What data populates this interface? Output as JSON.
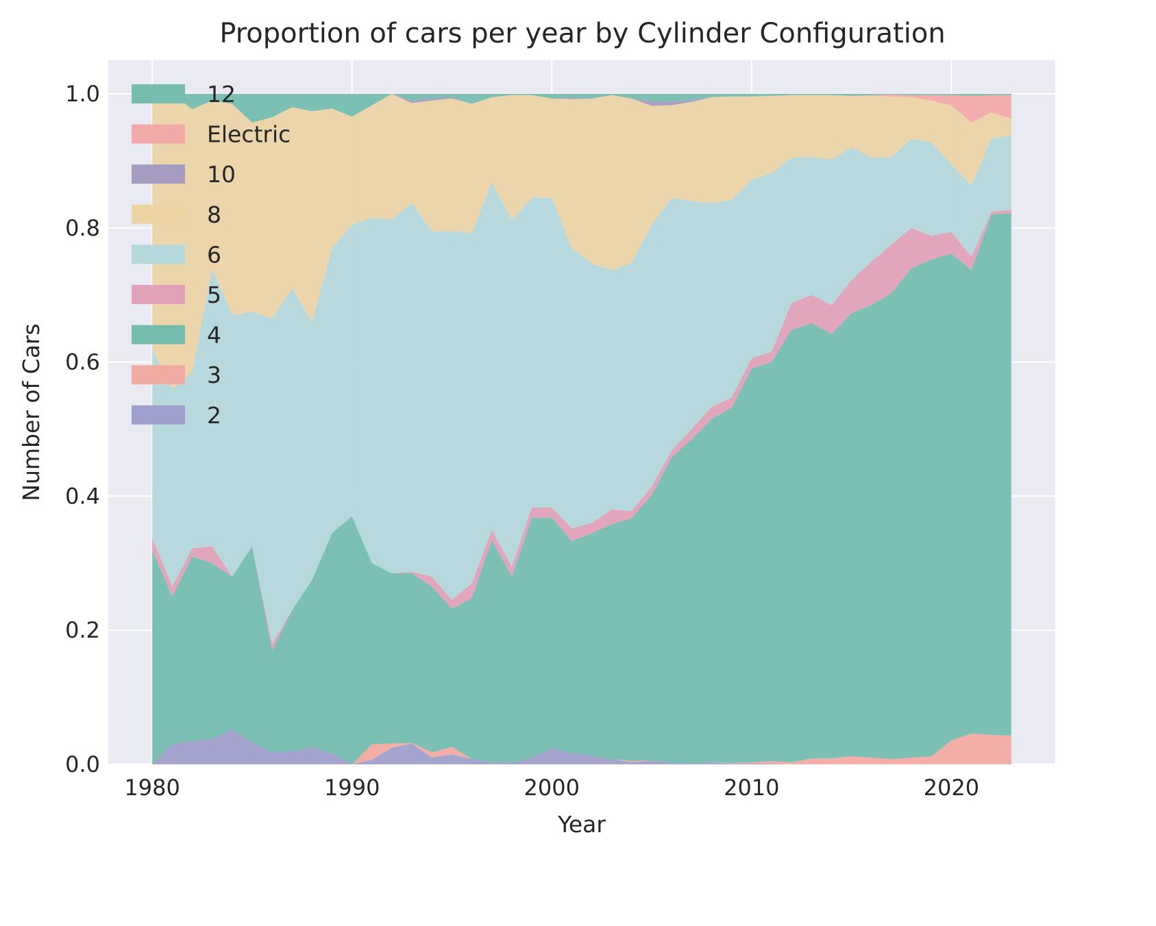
{
  "chart_data": {
    "type": "area",
    "stacked": true,
    "title": "Proportion of cars per year by Cylinder Configuration",
    "xlabel": "Year",
    "ylabel": "Number of Cars",
    "xlim": [
      1977.8,
      2025.2
    ],
    "ylim": [
      0,
      1.05
    ],
    "x_ticks": [
      1980,
      1990,
      2000,
      2010,
      2020
    ],
    "y_ticks": [
      "0.0",
      "0.2",
      "0.4",
      "0.6",
      "0.8",
      "1.0"
    ],
    "grid": true,
    "legend_position": "top-left",
    "x": [
      1980,
      1981,
      1982,
      1983,
      1984,
      1985,
      1986,
      1987,
      1988,
      1989,
      1990,
      1991,
      1992,
      1993,
      1994,
      1995,
      1996,
      1997,
      1998,
      1999,
      2000,
      2001,
      2002,
      2003,
      2004,
      2005,
      2006,
      2007,
      2008,
      2009,
      2010,
      2011,
      2012,
      2013,
      2014,
      2015,
      2016,
      2017,
      2018,
      2019,
      2020,
      2021,
      2022,
      2023
    ],
    "series": [
      {
        "name": "2",
        "color": "#a0a0cc",
        "values": [
          0,
          0.03,
          0.035,
          0.038,
          0.052,
          0.032,
          0.018,
          0.02,
          0.025,
          0.016,
          0,
          0.007,
          0.025,
          0.031,
          0.01,
          0.015,
          0.008,
          0.003,
          0.002,
          0.01,
          0.024,
          0.016,
          0.013,
          0.008,
          0.003,
          0.006,
          0.002,
          0.001,
          0.003,
          0.001,
          0.001,
          0.001,
          0,
          0,
          0,
          0,
          0,
          0,
          0,
          0,
          0,
          0,
          0,
          0
        ]
      },
      {
        "name": "3",
        "color": "#f2aba2",
        "values": [
          0,
          0,
          0,
          0,
          0,
          0,
          0,
          0,
          0,
          0,
          0,
          0.023,
          0.006,
          0.001,
          0.008,
          0.011,
          0,
          0,
          0,
          0,
          0,
          0,
          0,
          0,
          0.002,
          0,
          0,
          0,
          0,
          0.001,
          0.002,
          0.004,
          0.003,
          0.009,
          0.009,
          0.012,
          0.01,
          0.008,
          0.01,
          0.012,
          0.036,
          0.046,
          0.044,
          0.043
        ]
      },
      {
        "name": "4",
        "color": "#76bdb0",
        "values": [
          0.32,
          0.22,
          0.275,
          0.262,
          0.228,
          0.293,
          0.152,
          0.21,
          0.25,
          0.329,
          0.37,
          0.27,
          0.254,
          0.253,
          0.247,
          0.206,
          0.24,
          0.332,
          0.278,
          0.358,
          0.344,
          0.317,
          0.332,
          0.35,
          0.362,
          0.396,
          0.456,
          0.484,
          0.512,
          0.53,
          0.587,
          0.595,
          0.645,
          0.649,
          0.633,
          0.661,
          0.675,
          0.695,
          0.73,
          0.741,
          0.726,
          0.691,
          0.776,
          0.779
        ]
      },
      {
        "name": "5",
        "color": "#e0a2b8",
        "values": [
          0.018,
          0.015,
          0.012,
          0.025,
          0,
          0,
          0.01,
          0,
          0,
          0,
          0,
          0,
          0,
          0.002,
          0.015,
          0.013,
          0.022,
          0.015,
          0.015,
          0.015,
          0.015,
          0.019,
          0.015,
          0.022,
          0.011,
          0.013,
          0.01,
          0.015,
          0.018,
          0.015,
          0.016,
          0.015,
          0.04,
          0.042,
          0.043,
          0.049,
          0.065,
          0.072,
          0.06,
          0.035,
          0.032,
          0.02,
          0.004,
          0.005
        ]
      },
      {
        "name": "6",
        "color": "#b4d8db",
        "values": [
          0.282,
          0.295,
          0.263,
          0.415,
          0.39,
          0.35,
          0.485,
          0.48,
          0.385,
          0.425,
          0.435,
          0.515,
          0.528,
          0.55,
          0.515,
          0.55,
          0.523,
          0.518,
          0.517,
          0.462,
          0.462,
          0.418,
          0.387,
          0.357,
          0.37,
          0.39,
          0.377,
          0.34,
          0.304,
          0.295,
          0.266,
          0.267,
          0.217,
          0.206,
          0.217,
          0.198,
          0.155,
          0.131,
          0.133,
          0.139,
          0.101,
          0.106,
          0.109,
          0.111
        ]
      },
      {
        "name": "8",
        "color": "#ecd4a5",
        "values": [
          0.38,
          0.44,
          0.392,
          0.25,
          0.315,
          0.282,
          0.3,
          0.27,
          0.314,
          0.208,
          0.161,
          0.168,
          0.187,
          0.149,
          0.195,
          0.198,
          0.192,
          0.127,
          0.186,
          0.153,
          0.148,
          0.222,
          0.246,
          0.261,
          0.245,
          0.177,
          0.138,
          0.148,
          0.158,
          0.154,
          0.124,
          0.115,
          0.093,
          0.092,
          0.096,
          0.077,
          0.092,
          0.09,
          0.062,
          0.063,
          0.088,
          0.094,
          0.039,
          0.025
        ]
      },
      {
        "name": "10",
        "color": "#a69cc0",
        "values": [
          0,
          0,
          0,
          0,
          0,
          0,
          0,
          0,
          0,
          0,
          0,
          0,
          0,
          0.004,
          0.003,
          0.002,
          0,
          0,
          0,
          0,
          0,
          0.002,
          0,
          0,
          0,
          0.007,
          0.005,
          0.003,
          0,
          0,
          0,
          0,
          0,
          0,
          0,
          0,
          0,
          0,
          0,
          0,
          0,
          0,
          0,
          0
        ]
      },
      {
        "name": "Electric",
        "color": "#f2aaa8",
        "values": [
          0,
          0,
          0,
          0,
          0,
          0,
          0,
          0,
          0,
          0,
          0,
          0,
          0,
          0,
          0,
          0,
          0,
          0,
          0,
          0,
          0,
          0,
          0,
          0,
          0,
          0,
          0,
          0,
          0,
          0,
          0,
          0,
          0,
          0,
          0,
          0,
          0.001,
          0.003,
          0.003,
          0.008,
          0.015,
          0.04,
          0.026,
          0.035
        ]
      },
      {
        "name": "12",
        "color": "#76bdb0",
        "values": [
          0,
          0,
          0.023,
          0.01,
          0.015,
          0.043,
          0.035,
          0.02,
          0.026,
          0.022,
          0.034,
          0.017,
          0,
          0.01,
          0.007,
          0.005,
          0.015,
          0.005,
          0.002,
          0.002,
          0.007,
          0.006,
          0.007,
          0.002,
          0.007,
          0.011,
          0.012,
          0.009,
          0.005,
          0.004,
          0.004,
          0.003,
          0.002,
          0.002,
          0.002,
          0.003,
          0.002,
          0.001,
          0.002,
          0.002,
          0.002,
          0.003,
          0.002,
          0.002
        ]
      }
    ]
  }
}
